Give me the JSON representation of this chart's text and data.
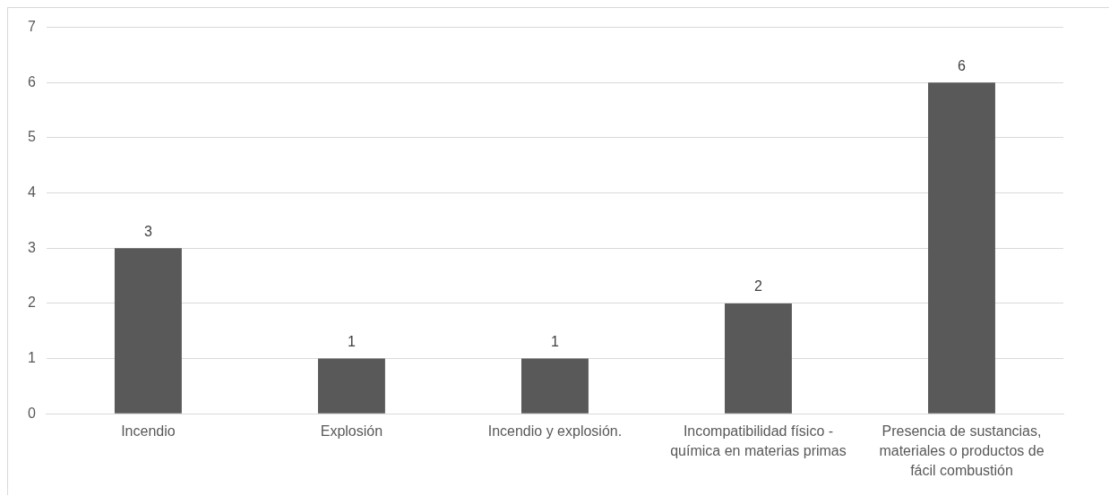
{
  "chart_data": {
    "type": "bar",
    "categories": [
      "Incendio",
      "Explosión",
      "Incendio y explosión.",
      "Incompatibilidad físico - química en materias primas",
      "Presencia de sustancias, materiales o productos de fácil combustión"
    ],
    "values": [
      3,
      1,
      1,
      2,
      6
    ],
    "color": "#595959",
    "ylim": [
      0,
      7
    ],
    "yticks": [
      0,
      1,
      2,
      3,
      4,
      5,
      6,
      7
    ],
    "grid": "y",
    "data_labels": true,
    "legend": false
  }
}
